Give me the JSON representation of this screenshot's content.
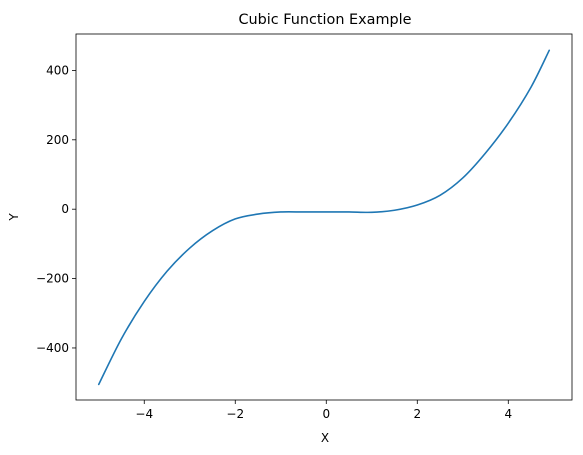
{
  "chart_data": {
    "type": "line",
    "title": "Cubic Function Example",
    "xlabel": "X",
    "ylabel": "Y",
    "xlim": [
      -5.5,
      5.4
    ],
    "ylim": [
      -550,
      505
    ],
    "xticks": [
      -4,
      -2,
      0,
      2,
      4
    ],
    "yticks": [
      -400,
      -200,
      0,
      200,
      400
    ],
    "xtick_labels": [
      "−4",
      "−2",
      "0",
      "2",
      "4"
    ],
    "ytick_labels": [
      "−400",
      "−200",
      "0",
      "200",
      "400"
    ],
    "grid": false,
    "series": [
      {
        "color": "#1f77b4",
        "x": [
          -5.0,
          -4.5,
          -4.0,
          -3.5,
          -3.0,
          -2.5,
          -2.0,
          -1.5,
          -1.0,
          -0.5,
          0.0,
          0.5,
          1.0,
          1.5,
          2.0,
          2.5,
          3.0,
          3.5,
          4.0,
          4.5,
          4.9
        ],
        "y": [
          -505,
          -373,
          -266,
          -179,
          -112,
          -62,
          -28,
          -14,
          -8,
          -8,
          -8,
          -8,
          -9,
          -3,
          12,
          40,
          90,
          162,
          248,
          352,
          458
        ]
      }
    ]
  }
}
